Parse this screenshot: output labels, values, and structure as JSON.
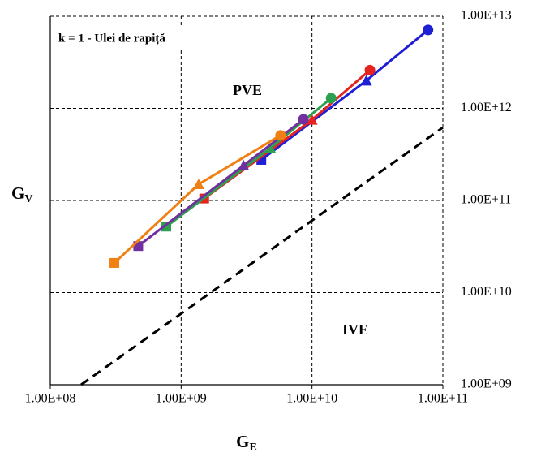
{
  "chart_data": {
    "type": "line",
    "x_label": "G",
    "x_label_sub": "E",
    "y_label": "G",
    "y_label_sub": "V",
    "annotations": [
      "k = 1 - Ulei de rapiță",
      "PVE",
      "IVE"
    ],
    "log_x": true,
    "log_y": true,
    "grid": true,
    "xlim": [
      100000000,
      100000000000
    ],
    "ylim": [
      1000000000,
      10000000000000
    ],
    "xticks": [
      {
        "value": 100000000,
        "label": "1.00E+08"
      },
      {
        "value": 1000000000,
        "label": "1.00E+09"
      },
      {
        "value": 10000000000,
        "label": "1.00E+10"
      },
      {
        "value": 100000000000,
        "label": "1.00E+11"
      }
    ],
    "yticks": [
      {
        "value": 1000000000,
        "label": "1.00E+09"
      },
      {
        "value": 10000000000,
        "label": "1.00E+10"
      },
      {
        "value": 100000000000,
        "label": "1.00E+11"
      },
      {
        "value": 1000000000000,
        "label": "1.00E+12"
      },
      {
        "value": 10000000000000,
        "label": "1.00E+13"
      }
    ],
    "markers": [
      "square",
      "triangle",
      "circle"
    ],
    "series": [
      {
        "color": "#1f1fd6",
        "x": [
          4100000000,
          26000000000,
          77000000000
        ],
        "values": [
          276000000000,
          2000000000000,
          7100000000000
        ]
      },
      {
        "color": "#e5231f",
        "x": [
          1500000000,
          10000000000,
          27700000000
        ],
        "values": [
          105000000000,
          750000000000,
          2600000000000
        ]
      },
      {
        "color": "#2da050",
        "x": [
          770000000,
          4800000000,
          14000000000
        ],
        "values": [
          52000000000,
          370000000000,
          1290000000000
        ]
      },
      {
        "color": "#7030a0",
        "x": [
          470000000,
          3000000000,
          8600000000
        ],
        "values": [
          32000000000,
          240000000000,
          760000000000
        ]
      },
      {
        "color": "#f07f14",
        "x": [
          309000000,
          1360000000,
          5750000000
        ],
        "values": [
          21000000000,
          150000000000,
          510000000000
        ]
      }
    ],
    "reference_line": {
      "color": "#000000",
      "x": [
        172000000,
        100000000000
      ],
      "values": [
        1000000000,
        620000000000
      ]
    }
  }
}
